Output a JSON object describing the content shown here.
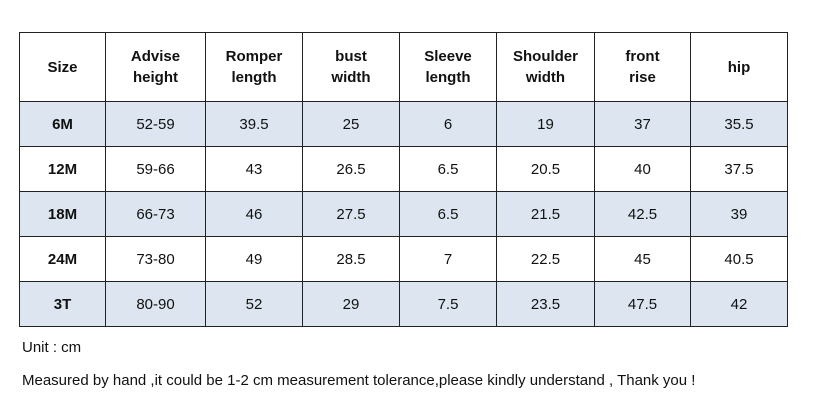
{
  "table": {
    "header": [
      "Size",
      "Advise\nheight",
      "Romper\nlength",
      "bust\nwidth",
      "Sleeve\nlength",
      "Shoulder\nwidth",
      "front\nrise",
      "hip"
    ],
    "rows": [
      [
        "6M",
        "52-59",
        "39.5",
        "25",
        "6",
        "19",
        "37",
        "35.5"
      ],
      [
        "12M",
        "59-66",
        "43",
        "26.5",
        "6.5",
        "20.5",
        "40",
        "37.5"
      ],
      [
        "18M",
        "66-73",
        "46",
        "27.5",
        "6.5",
        "21.5",
        "42.5",
        "39"
      ],
      [
        "24M",
        "73-80",
        "49",
        "28.5",
        "7",
        "22.5",
        "45",
        "40.5"
      ],
      [
        "3T",
        "80-90",
        "52",
        "29",
        "7.5",
        "23.5",
        "47.5",
        "42"
      ]
    ]
  },
  "notes": [
    "Unit : cm",
    "Measured by hand ,it could be 1-2 cm measurement tolerance,please kindly understand , Thank you !"
  ]
}
